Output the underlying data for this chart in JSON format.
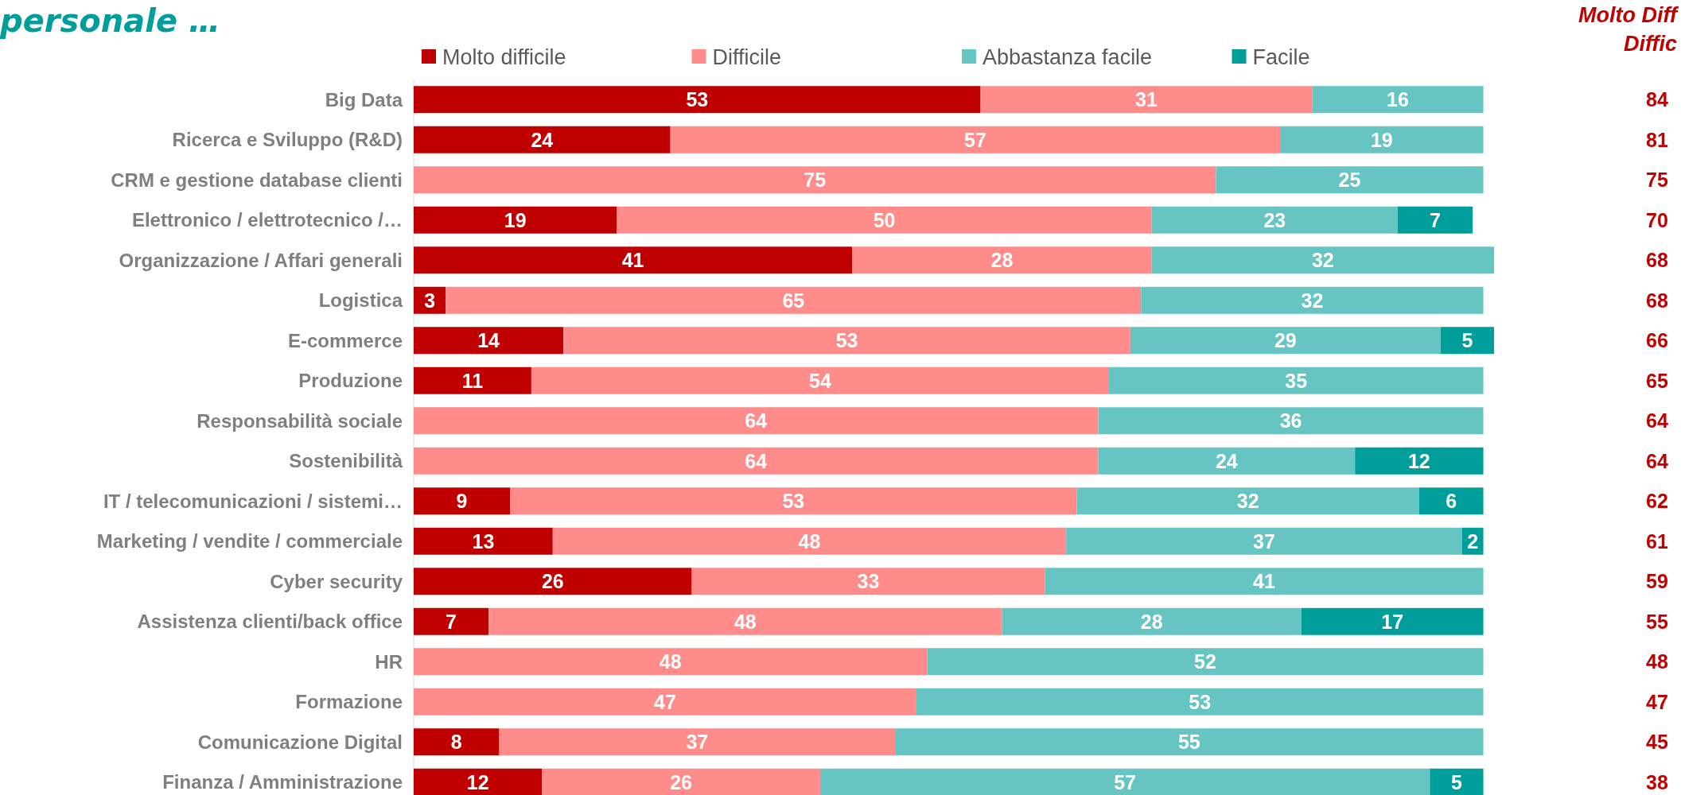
{
  "chart_data": {
    "type": "bar",
    "orientation": "horizontal",
    "stacked": true,
    "title": "personale …",
    "data_labels": true,
    "legend": "top",
    "categories": [
      "Big Data",
      "Ricerca e Sviluppo (R&D)",
      "CRM e gestione database clienti",
      "Elettronico / elettrotecnico /…",
      "Organizzazione / Affari generali",
      "Logistica",
      "E-commerce",
      "Produzione",
      "Responsabilità sociale",
      "Sostenibilità",
      "IT / telecomunicazioni / sistemi…",
      "Marketing / vendite / commerciale",
      "Cyber security",
      "Assistenza clienti/back office",
      "HR",
      "Formazione",
      "Comunicazione Digital",
      "Finanza / Amministrazione"
    ],
    "series": [
      {
        "name": "Molto difficile",
        "color": "#c00000",
        "values": [
          53,
          24,
          null,
          19,
          41,
          3,
          14,
          11,
          null,
          null,
          9,
          13,
          26,
          7,
          null,
          null,
          8,
          12
        ]
      },
      {
        "name": "Difficile",
        "color": "#ff8b8b",
        "values": [
          31,
          57,
          75,
          50,
          28,
          65,
          53,
          54,
          64,
          64,
          53,
          48,
          33,
          48,
          48,
          47,
          37,
          26
        ]
      },
      {
        "name": "Abbastanza facile",
        "color": "#66c5c3",
        "values": [
          16,
          19,
          25,
          23,
          32,
          32,
          29,
          35,
          36,
          24,
          32,
          37,
          41,
          28,
          52,
          53,
          55,
          57
        ]
      },
      {
        "name": "Facile",
        "color": "#009e9b",
        "values": [
          null,
          null,
          null,
          7,
          null,
          null,
          5,
          null,
          null,
          12,
          6,
          2,
          null,
          17,
          null,
          null,
          null,
          5
        ]
      }
    ],
    "annotations": [
      "Molto Diff",
      "Diffic",
      "84",
      "81",
      "75",
      "70",
      "68",
      "68",
      "66",
      "65",
      "64",
      "64",
      "62",
      "61",
      "59",
      "55",
      "48",
      "47",
      "45",
      "38"
    ]
  }
}
